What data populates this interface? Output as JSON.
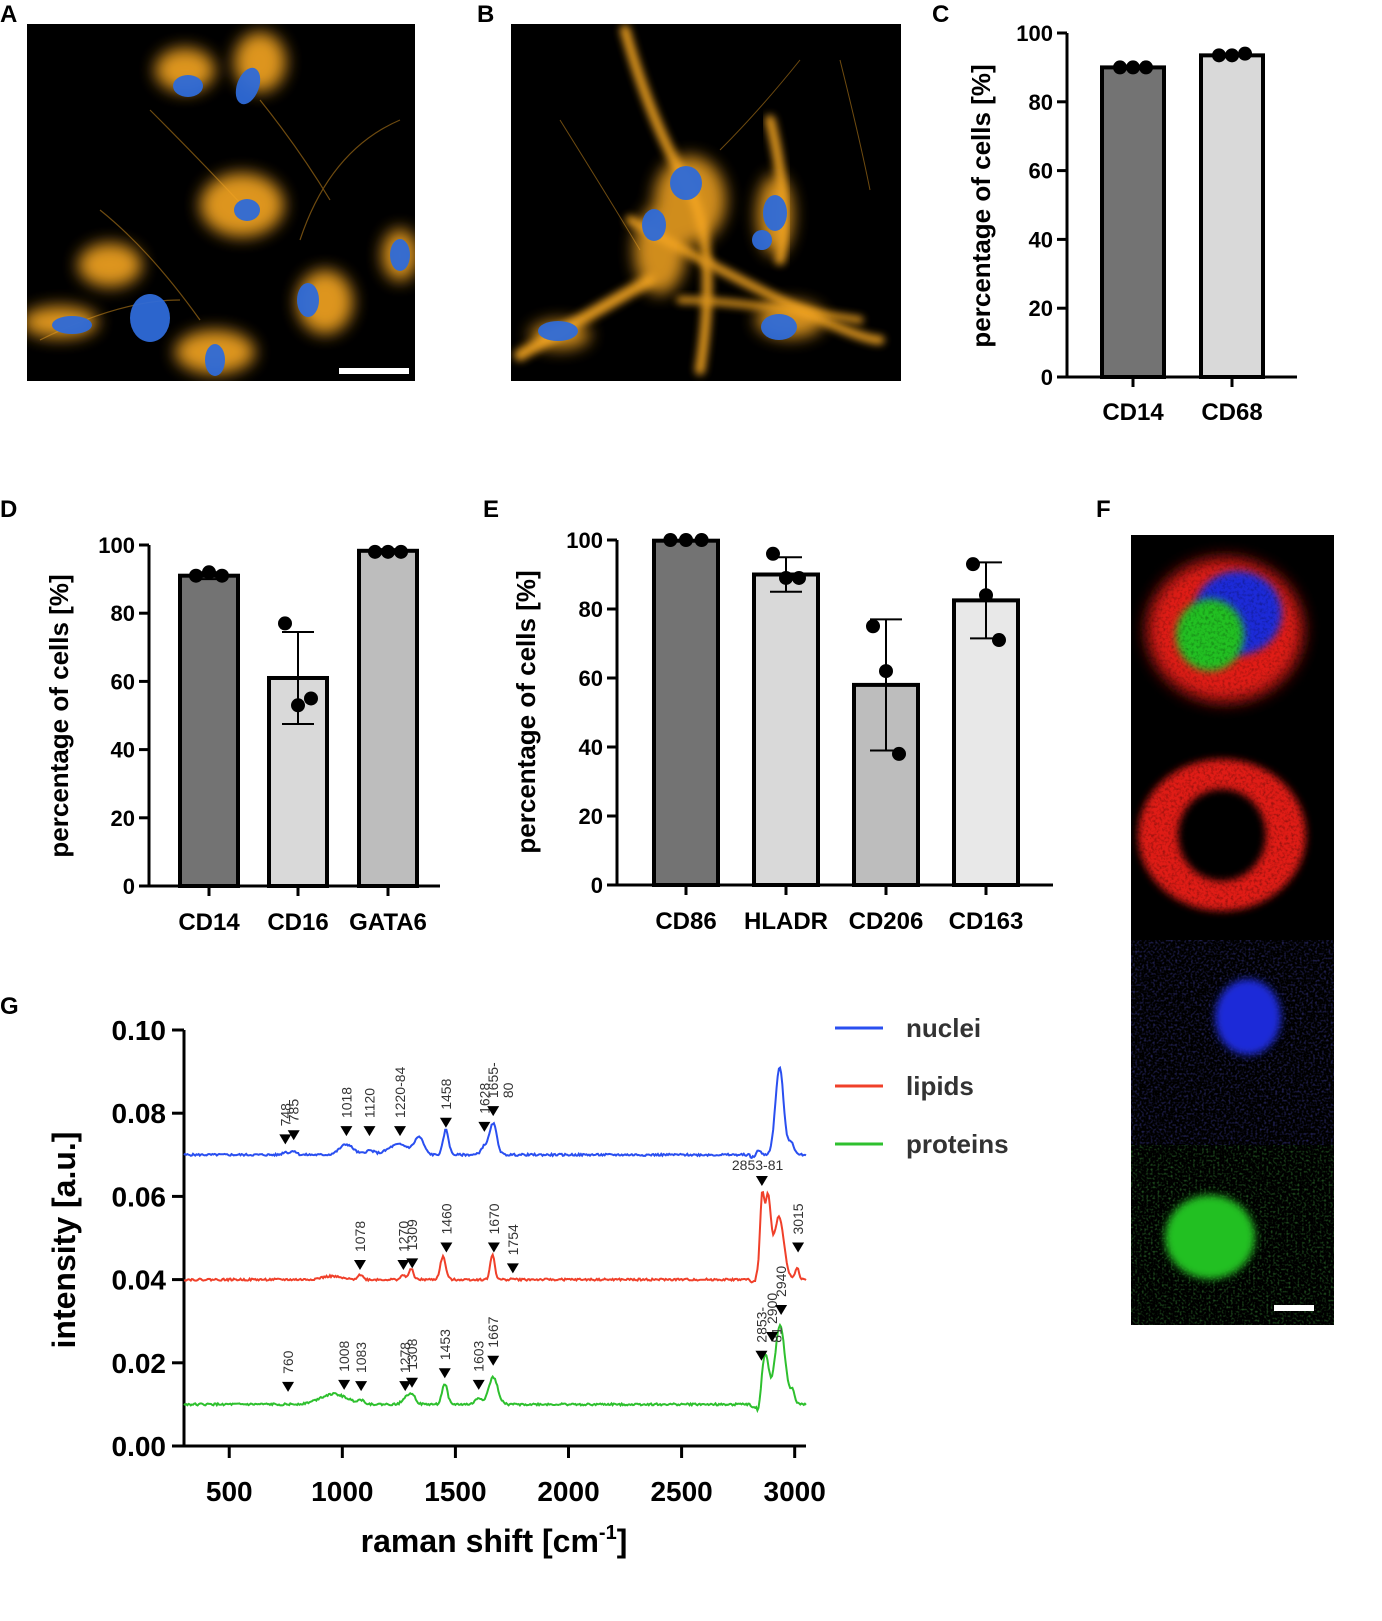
{
  "panels": {
    "A": {
      "label": "A"
    },
    "B": {
      "label": "B"
    },
    "C": {
      "label": "C"
    },
    "D": {
      "label": "D"
    },
    "E": {
      "label": "E"
    },
    "F": {
      "label": "F"
    },
    "G": {
      "label": "G"
    }
  },
  "colors": {
    "dark_gray": "#737373",
    "mid_gray": "#bdbdbd",
    "light_gray": "#d9d9d9",
    "lighter_gray": "#e8e8e8",
    "nuclei": "#2a4ff0",
    "lipids": "#f0402a",
    "proteins": "#2ec02e",
    "cytoskeleton": "#f5a623",
    "dapi": "#2f6bd8"
  },
  "chart_data": [
    {
      "panel": "C",
      "type": "bar",
      "ylabel": "percentage of cells [%]",
      "ylim": [
        0,
        100
      ],
      "yticks": [
        0,
        20,
        40,
        60,
        80,
        100
      ],
      "categories": [
        "CD14",
        "CD68"
      ],
      "values": [
        90,
        93.5
      ],
      "errors": [
        0,
        0
      ],
      "points": [
        [
          90,
          90,
          90
        ],
        [
          93.5,
          93.5,
          94
        ]
      ],
      "bar_colors": [
        "#737373",
        "#d9d9d9"
      ]
    },
    {
      "panel": "D",
      "type": "bar",
      "ylabel": "percentage of cells [%]",
      "ylim": [
        0,
        100
      ],
      "yticks": [
        0,
        20,
        40,
        60,
        80,
        100
      ],
      "categories": [
        "CD14",
        "CD16",
        "GATA6"
      ],
      "values": [
        91,
        61,
        98.3
      ],
      "errors": [
        1,
        13.5,
        0.5
      ],
      "points": [
        [
          91,
          92,
          91
        ],
        [
          77,
          53,
          55
        ],
        [
          98,
          98,
          98
        ]
      ],
      "bar_colors": [
        "#737373",
        "#d9d9d9",
        "#bdbdbd"
      ]
    },
    {
      "panel": "E",
      "type": "bar",
      "ylabel": "percentage of cells [%]",
      "ylim": [
        0,
        100
      ],
      "yticks": [
        0,
        20,
        40,
        60,
        80,
        100
      ],
      "categories": [
        "CD86",
        "HLADR",
        "CD206",
        "CD163"
      ],
      "values": [
        99.8,
        90,
        58,
        82.5
      ],
      "errors": [
        0.2,
        5,
        19,
        11
      ],
      "points": [
        [
          100,
          100,
          100
        ],
        [
          96,
          89,
          89
        ],
        [
          75,
          62,
          38
        ],
        [
          93,
          84,
          71
        ]
      ],
      "bar_colors": [
        "#737373",
        "#d9d9d9",
        "#bdbdbd",
        "#e8e8e8"
      ]
    },
    {
      "panel": "G",
      "type": "line",
      "xlabel": "raman shift [cm",
      "xlabel_sup": "-1",
      "xlabel_end": "]",
      "ylabel": "intensity [a.u.]",
      "xlim": [
        300,
        3050
      ],
      "ylim": [
        0,
        0.1
      ],
      "xticks": [
        500,
        1000,
        1500,
        2000,
        2500,
        3000
      ],
      "yticks": [
        "0.00",
        "0.02",
        "0.04",
        "0.06",
        "0.08",
        "0.10"
      ],
      "legend_position": "top-right",
      "series": [
        {
          "name": "nuclei",
          "color": "#2a4ff0",
          "baseline": 0.07,
          "x_end": 3050,
          "peaks": [
            [
              748,
              0.0007,
              12
            ],
            [
              785,
              0.001,
              12
            ],
            [
              1018,
              0.0025,
              30
            ],
            [
              1120,
              0.001,
              20
            ],
            [
              1250,
              0.0025,
              45
            ],
            [
              1340,
              0.004,
              20
            ],
            [
              1458,
              0.006,
              12
            ],
            [
              1628,
              0.002,
              15
            ],
            [
              1667,
              0.0075,
              16
            ],
            [
              2840,
              0.001,
              10
            ],
            [
              2933,
              0.021,
              18
            ],
            [
              2985,
              0.003,
              12
            ]
          ],
          "dip": [],
          "markers": [
            [
              748,
              0.0725,
              "748"
            ],
            [
              785,
              0.0735,
              "785"
            ],
            [
              1018,
              0.0745,
              "1018"
            ],
            [
              1120,
              0.0745,
              "1120"
            ],
            [
              1255,
              0.0745,
              "1220-84"
            ],
            [
              1458,
              0.0765,
              "1458"
            ],
            [
              1628,
              0.0755,
              "1628"
            ],
            [
              1667,
              0.0793,
              "1655-\n80"
            ]
          ]
        },
        {
          "name": "lipids",
          "color": "#f0402a",
          "baseline": 0.04,
          "x_end": 3050,
          "peaks": [
            [
              950,
              0.0008,
              40
            ],
            [
              1078,
              0.0012,
              12
            ],
            [
              1270,
              0.001,
              12
            ],
            [
              1305,
              0.0025,
              10
            ],
            [
              1445,
              0.0055,
              12
            ],
            [
              1664,
              0.006,
              10
            ],
            [
              1754,
              0.0002,
              10
            ],
            [
              2855,
              0.02,
              10
            ],
            [
              2882,
              0.019,
              12
            ],
            [
              2930,
              0.015,
              22
            ],
            [
              3010,
              0.003,
              8
            ]
          ],
          "dip": [
            [
              2845,
              0.002,
              6
            ]
          ],
          "markers": [
            [
              1078,
              0.0423,
              "1078"
            ],
            [
              1270,
              0.0423,
              "1270"
            ],
            [
              1309,
              0.0427,
              "1309"
            ],
            [
              1460,
              0.0465,
              "1460"
            ],
            [
              1670,
              0.0465,
              "1670"
            ],
            [
              1754,
              0.0415,
              "1754"
            ],
            [
              2855,
              0.0625,
              "2853-81"
            ],
            [
              3015,
              0.0465,
              "3015"
            ]
          ]
        },
        {
          "name": "proteins",
          "color": "#2ec02e",
          "baseline": 0.01,
          "x_end": 3050,
          "peaks": [
            [
              960,
              0.0025,
              60
            ],
            [
              1083,
              0.0008,
              15
            ],
            [
              1278,
              0.0015,
              15
            ],
            [
              1308,
              0.0025,
              15
            ],
            [
              1453,
              0.005,
              12
            ],
            [
              1603,
              0.0015,
              15
            ],
            [
              1667,
              0.0065,
              20
            ],
            [
              2870,
              0.012,
              15
            ],
            [
              2935,
              0.019,
              22
            ],
            [
              2990,
              0.003,
              10
            ]
          ],
          "dip": [
            [
              2840,
              0.0025,
              8
            ]
          ],
          "markers": [
            [
              760,
              0.013,
              "760"
            ],
            [
              1008,
              0.0135,
              "1008"
            ],
            [
              1083,
              0.0132,
              "1083"
            ],
            [
              1278,
              0.0132,
              "1278"
            ],
            [
              1308,
              0.014,
              "1308"
            ],
            [
              1453,
              0.0163,
              "1453"
            ],
            [
              1603,
              0.0135,
              "1603"
            ],
            [
              1667,
              0.0193,
              "1667"
            ],
            [
              2853,
              0.0205,
              "2853-\n81"
            ],
            [
              2900,
              0.025,
              "2900"
            ],
            [
              2940,
              0.0315,
              "2940"
            ]
          ]
        }
      ]
    }
  ]
}
